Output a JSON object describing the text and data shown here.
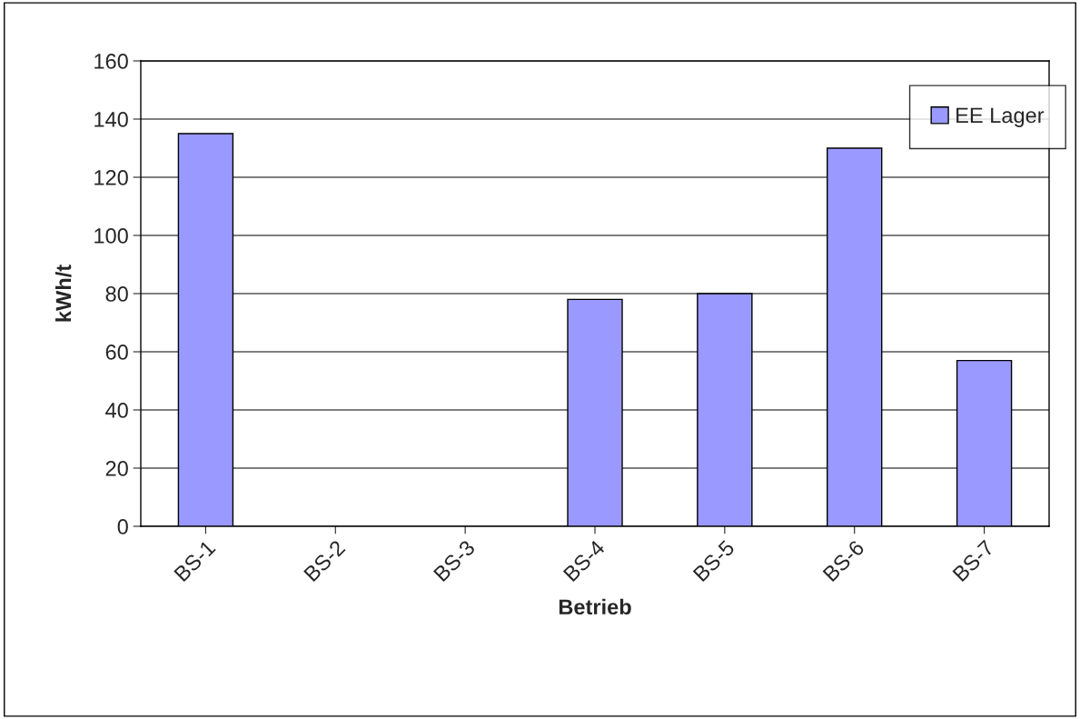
{
  "chart_data": {
    "type": "bar",
    "xlabel": "Betrieb",
    "ylabel": "kWh/t",
    "categories": [
      "BS-1",
      "BS-2",
      "BS-3",
      "BS-4",
      "BS-5",
      "BS-6",
      "BS-7"
    ],
    "series": [
      {
        "name": "EE Lager",
        "color": "#9999ff",
        "values": [
          135,
          null,
          null,
          78,
          80,
          130,
          57
        ]
      }
    ],
    "ylim": [
      0,
      160
    ],
    "yticks": [
      0,
      20,
      40,
      60,
      80,
      100,
      120,
      140,
      160
    ],
    "grid": "y",
    "legend": "top right"
  }
}
